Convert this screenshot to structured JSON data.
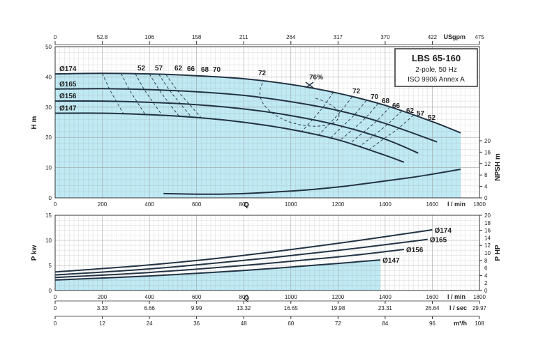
{
  "title_box": {
    "model": "LBS 65-160",
    "line2": "2-pole, 50 Hz",
    "line3": "ISO 9906 Annex A"
  },
  "colors": {
    "fill": "#bfe9f3",
    "curve": "#223344",
    "grid": "#9a9a9a",
    "frame": "#333333"
  },
  "chart_data": [
    {
      "type": "line",
      "panel": "head",
      "xlabel": "Q",
      "x_unit": "l / min",
      "x_top_unit": "USgpm",
      "ylabel": "H m",
      "y2label": "NPSH m",
      "xlim": [
        0,
        1800
      ],
      "ylim": [
        0,
        50
      ],
      "x_ticks": [
        "0",
        "200",
        "400",
        "600",
        "800",
        "1000",
        "1200",
        "1400",
        "1600",
        "1800"
      ],
      "x_top_ticks": [
        "0",
        "52.8",
        "106",
        "158",
        "211",
        "264",
        "317",
        "370",
        "422",
        "475"
      ],
      "y_ticks": [
        "0",
        "10",
        "20",
        "30",
        "40",
        "50"
      ],
      "y2_ticks": [
        "0",
        "4",
        "8",
        "12",
        "16",
        "20"
      ],
      "series": [
        {
          "name": "Ø174",
          "x": [
            0,
            200,
            400,
            600,
            800,
            1000,
            1200,
            1400,
            1600,
            1720
          ],
          "y": [
            41,
            41.2,
            41,
            40.4,
            39.4,
            37.5,
            34.6,
            30.6,
            25.2,
            21.5
          ]
        },
        {
          "name": "Ø165",
          "x": [
            0,
            200,
            400,
            600,
            800,
            1000,
            1200,
            1400,
            1620
          ],
          "y": [
            36,
            36.1,
            35.8,
            35.1,
            33.9,
            31.8,
            28.9,
            24.6,
            18.5
          ]
        },
        {
          "name": "Ø156",
          "x": [
            0,
            200,
            400,
            600,
            800,
            1000,
            1200,
            1400,
            1540
          ],
          "y": [
            32,
            32,
            31.6,
            30.8,
            29.4,
            27.2,
            24,
            19.4,
            14.8
          ]
        },
        {
          "name": "Ø147",
          "x": [
            0,
            200,
            400,
            600,
            800,
            1000,
            1200,
            1380,
            1480
          ],
          "y": [
            28,
            28,
            27.5,
            26.6,
            25,
            22.6,
            19.2,
            14.6,
            11.8
          ]
        },
        {
          "name": "NPSH",
          "x": [
            460,
            600,
            700,
            800,
            900,
            1000,
            1100,
            1200,
            1300,
            1400,
            1500,
            1600,
            1720
          ],
          "y": [
            1.5,
            1.3,
            1.3,
            1.5,
            1.9,
            2.4,
            3.0,
            3.8,
            4.8,
            5.9,
            7.0,
            8.3,
            10
          ]
        }
      ],
      "efficiency_labels": {
        "top": [
          "52",
          "57",
          "62",
          "66",
          "68",
          "70",
          "72"
        ],
        "best": "76%",
        "right": [
          "72",
          "70",
          "68",
          "66",
          "62",
          "57",
          "52"
        ]
      }
    },
    {
      "type": "line",
      "panel": "power",
      "xlabel": "Q",
      "x_unit": "l / min",
      "ylabel": "P kw",
      "y2label": "P HP",
      "xlim": [
        0,
        1800
      ],
      "ylim": [
        0,
        15
      ],
      "x_ticks": [
        "0",
        "200",
        "400",
        "600",
        "800",
        "1000",
        "1200",
        "1400",
        "1600",
        "1800"
      ],
      "y_ticks": [
        "0",
        "5",
        "10",
        "15"
      ],
      "y2_ticks": [
        "0",
        "2",
        "4",
        "6",
        "8",
        "10",
        "12",
        "14",
        "16",
        "18",
        "20"
      ],
      "series": [
        {
          "name": "Ø174",
          "x": [
            0,
            400,
            800,
            1200,
            1600
          ],
          "y": [
            3.7,
            5.1,
            7.0,
            9.4,
            12.1
          ]
        },
        {
          "name": "Ø165",
          "x": [
            0,
            400,
            800,
            1200,
            1580
          ],
          "y": [
            3.1,
            4.3,
            6.0,
            8.0,
            10.2
          ]
        },
        {
          "name": "Ø156",
          "x": [
            0,
            400,
            800,
            1200,
            1480
          ],
          "y": [
            2.6,
            3.6,
            5.0,
            6.7,
            8.2
          ]
        },
        {
          "name": "Ø147",
          "x": [
            0,
            400,
            800,
            1200,
            1380
          ],
          "y": [
            2.1,
            2.9,
            4.0,
            5.4,
            6.1
          ]
        }
      ]
    }
  ],
  "extra_axes": [
    {
      "unit": "l / sec",
      "ticks": [
        "0",
        "3.33",
        "6.66",
        "9.99",
        "13.32",
        "16.65",
        "19.98",
        "23.31",
        "26.64",
        "29.97"
      ]
    },
    {
      "unit": "m³/h",
      "ticks": [
        "0",
        "12",
        "24",
        "36",
        "48",
        "60",
        "72",
        "84",
        "96",
        "108"
      ]
    }
  ]
}
